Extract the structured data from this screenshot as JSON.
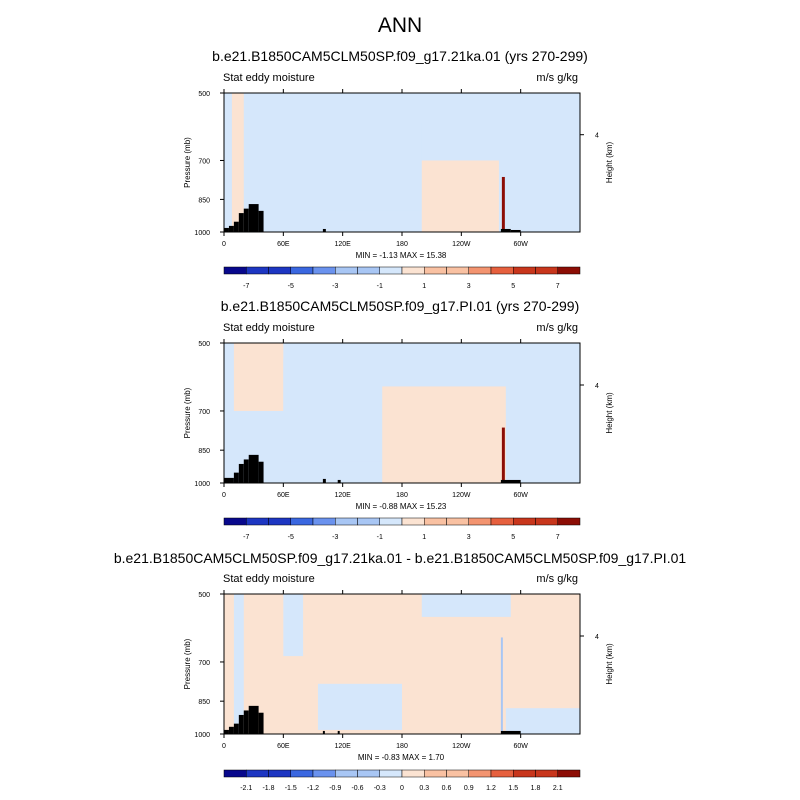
{
  "main_title": "ANN",
  "colors": {
    "full_palette": [
      "#08088c",
      "#1d36c2",
      "#3a67e0",
      "#6a92ee",
      "#a8c6f4",
      "#d5e7fb",
      "#fbe3d2",
      "#f9c1a2",
      "#f39470",
      "#e6603e",
      "#c8361c",
      "#8c0d05"
    ],
    "low": "#d5e7fb",
    "high": "#fbe3d2",
    "land": "#000000"
  },
  "panels": [
    {
      "title": "b.e21.B1850CAM5CLM50SP.f09_g17.21ka.01 (yrs 270-299)",
      "left_label": "Stat eddy moisture",
      "right_label": "m/s g/kg",
      "minmax": "MIN = -1.13  MAX = 15.38",
      "colorbar_labels": [
        "-7",
        "-5",
        "-3",
        "-1",
        "1",
        "3",
        "5",
        "7"
      ]
    },
    {
      "title": "b.e21.B1850CAM5CLM50SP.f09_g17.PI.01 (yrs 270-299)",
      "left_label": "Stat eddy moisture",
      "right_label": "m/s g/kg",
      "minmax": "MIN = -0.88  MAX = 15.23",
      "colorbar_labels": [
        "-7",
        "-5",
        "-3",
        "-1",
        "1",
        "3",
        "5",
        "7"
      ]
    },
    {
      "title": "b.e21.B1850CAM5CLM50SP.f09_g17.21ka.01 - b.e21.B1850CAM5CLM50SP.f09_g17.PI.01",
      "left_label": "Stat eddy moisture",
      "right_label": "m/s g/kg",
      "minmax": "MIN = -0.83  MAX = 1.70",
      "colorbar_labels": [
        "-2.1",
        "-1.8",
        "-1.5",
        "-1.2",
        "-0.9",
        "-0.6",
        "-0.3",
        "0",
        "0.3",
        "0.6",
        "0.9",
        "1.2",
        "1.5",
        "1.8",
        "2.1"
      ]
    }
  ],
  "chart_data": [
    {
      "type": "heatmap",
      "title": "b.e21.B1850CAM5CLM50SP.f09_g17.21ka.01 (yrs 270-299)",
      "variable": "Stat eddy moisture",
      "units": "m/s g/kg",
      "xlabel": "",
      "ylabel": "Pressure (mb)",
      "y2label": "Height (km)",
      "x_ticks": [
        "0",
        "60E",
        "120E",
        "180",
        "120W",
        "60W"
      ],
      "x_tick_lon": [
        0,
        60,
        120,
        180,
        240,
        300
      ],
      "xlim": [
        0,
        360
      ],
      "y_ticks": [
        500,
        700,
        850,
        1000
      ],
      "ylim": [
        1000,
        500
      ],
      "y2_ticks": [
        4
      ],
      "min": -1.13,
      "max": 15.38,
      "levels": [
        -7,
        -6,
        -5,
        -4,
        -3,
        -2,
        -1,
        0,
        1,
        2,
        3,
        4,
        5,
        6,
        7
      ],
      "regions": [
        {
          "value": -0.5,
          "lon": [
            0,
            8
          ],
          "p": [
            500,
            1000
          ]
        },
        {
          "value": 0.5,
          "lon": [
            8,
            20
          ],
          "p": [
            500,
            1000
          ]
        },
        {
          "value": -0.5,
          "lon": [
            60,
            75
          ],
          "p": [
            500,
            760
          ]
        },
        {
          "value": -0.5,
          "lon": [
            100,
            200
          ],
          "p": [
            580,
            900
          ]
        },
        {
          "value": 0.5,
          "lon": [
            200,
            278
          ],
          "p": [
            700,
            1000
          ]
        },
        {
          "value": 15.38,
          "lon": [
            281,
            284
          ],
          "p": [
            760,
            1000
          ]
        }
      ],
      "land": [
        {
          "lon": [
            0,
            5
          ],
          "p": 980
        },
        {
          "lon": [
            5,
            10
          ],
          "p": 970
        },
        {
          "lon": [
            10,
            15
          ],
          "p": 950
        },
        {
          "lon": [
            15,
            20
          ],
          "p": 910
        },
        {
          "lon": [
            20,
            25
          ],
          "p": 890
        },
        {
          "lon": [
            25,
            35
          ],
          "p": 870
        },
        {
          "lon": [
            35,
            40
          ],
          "p": 900
        },
        {
          "lon": [
            100,
            103
          ],
          "p": 985
        },
        {
          "lon": [
            280,
            290
          ],
          "p": 985
        },
        {
          "lon": [
            290,
            300
          ],
          "p": 990
        }
      ]
    },
    {
      "type": "heatmap",
      "title": "b.e21.B1850CAM5CLM50SP.f09_g17.PI.01 (yrs 270-299)",
      "variable": "Stat eddy moisture",
      "units": "m/s g/kg",
      "xlabel": "",
      "ylabel": "Pressure (mb)",
      "y2label": "Height (km)",
      "x_ticks": [
        "0",
        "60E",
        "120E",
        "180",
        "120W",
        "60W"
      ],
      "x_tick_lon": [
        0,
        60,
        120,
        180,
        240,
        300
      ],
      "xlim": [
        0,
        360
      ],
      "y_ticks": [
        500,
        700,
        850,
        1000
      ],
      "ylim": [
        1000,
        500
      ],
      "y2_ticks": [
        4
      ],
      "min": -0.88,
      "max": 15.23,
      "levels": [
        -7,
        -6,
        -5,
        -4,
        -3,
        -2,
        -1,
        0,
        1,
        2,
        3,
        4,
        5,
        6,
        7
      ],
      "regions": [
        {
          "value": -0.5,
          "lon": [
            0,
            10
          ],
          "p": [
            500,
            1000
          ]
        },
        {
          "value": 0.5,
          "lon": [
            10,
            60
          ],
          "p": [
            500,
            700
          ]
        },
        {
          "value": -0.5,
          "lon": [
            60,
            160
          ],
          "p": [
            540,
            900
          ]
        },
        {
          "value": 0.5,
          "lon": [
            160,
            285
          ],
          "p": [
            620,
            1000
          ]
        },
        {
          "value": 15.23,
          "lon": [
            281,
            284
          ],
          "p": [
            760,
            1000
          ]
        }
      ],
      "land": [
        {
          "lon": [
            0,
            10
          ],
          "p": 975
        },
        {
          "lon": [
            10,
            15
          ],
          "p": 950
        },
        {
          "lon": [
            15,
            20
          ],
          "p": 910
        },
        {
          "lon": [
            20,
            25
          ],
          "p": 890
        },
        {
          "lon": [
            25,
            35
          ],
          "p": 870
        },
        {
          "lon": [
            35,
            40
          ],
          "p": 900
        },
        {
          "lon": [
            100,
            103
          ],
          "p": 980
        },
        {
          "lon": [
            115,
            118
          ],
          "p": 985
        },
        {
          "lon": [
            280,
            300
          ],
          "p": 985
        }
      ]
    },
    {
      "type": "heatmap",
      "title": "b.e21.B1850CAM5CLM50SP.f09_g17.21ka.01 - b.e21.B1850CAM5CLM50SP.f09_g17.PI.01",
      "variable": "Stat eddy moisture",
      "units": "m/s g/kg",
      "xlabel": "",
      "ylabel": "Pressure (mb)",
      "y2label": "Height (km)",
      "x_ticks": [
        "0",
        "60E",
        "120E",
        "180",
        "120W",
        "60W"
      ],
      "x_tick_lon": [
        0,
        60,
        120,
        180,
        240,
        300
      ],
      "xlim": [
        0,
        360
      ],
      "y_ticks": [
        500,
        700,
        850,
        1000
      ],
      "ylim": [
        1000,
        500
      ],
      "y2_ticks": [
        4
      ],
      "min": -0.83,
      "max": 1.7,
      "levels": [
        -2.1,
        -1.8,
        -1.5,
        -1.2,
        -0.9,
        -0.6,
        -0.3,
        0,
        0.3,
        0.6,
        0.9,
        1.2,
        1.5,
        1.8,
        2.1
      ],
      "regions": [
        {
          "value": 0.1,
          "lon": [
            0,
            360
          ],
          "p": [
            500,
            1000
          ]
        },
        {
          "value": -0.1,
          "lon": [
            10,
            20
          ],
          "p": [
            500,
            1000
          ]
        },
        {
          "value": -0.1,
          "lon": [
            60,
            80
          ],
          "p": [
            500,
            680
          ]
        },
        {
          "value": -0.1,
          "lon": [
            200,
            290
          ],
          "p": [
            500,
            560
          ]
        },
        {
          "value": -0.1,
          "lon": [
            95,
            180
          ],
          "p": [
            780,
            980
          ]
        },
        {
          "value": -0.1,
          "lon": [
            285,
            360
          ],
          "p": [
            880,
            1000
          ]
        },
        {
          "value": -0.6,
          "lon": [
            280,
            282
          ],
          "p": [
            620,
            1000
          ]
        }
      ],
      "land": [
        {
          "lon": [
            0,
            5
          ],
          "p": 980
        },
        {
          "lon": [
            5,
            10
          ],
          "p": 965
        },
        {
          "lon": [
            10,
            15
          ],
          "p": 950
        },
        {
          "lon": [
            15,
            20
          ],
          "p": 910
        },
        {
          "lon": [
            20,
            25
          ],
          "p": 890
        },
        {
          "lon": [
            25,
            35
          ],
          "p": 870
        },
        {
          "lon": [
            35,
            40
          ],
          "p": 900
        },
        {
          "lon": [
            100,
            102
          ],
          "p": 985
        },
        {
          "lon": [
            115,
            117
          ],
          "p": 985
        },
        {
          "lon": [
            280,
            300
          ],
          "p": 985
        }
      ]
    }
  ]
}
